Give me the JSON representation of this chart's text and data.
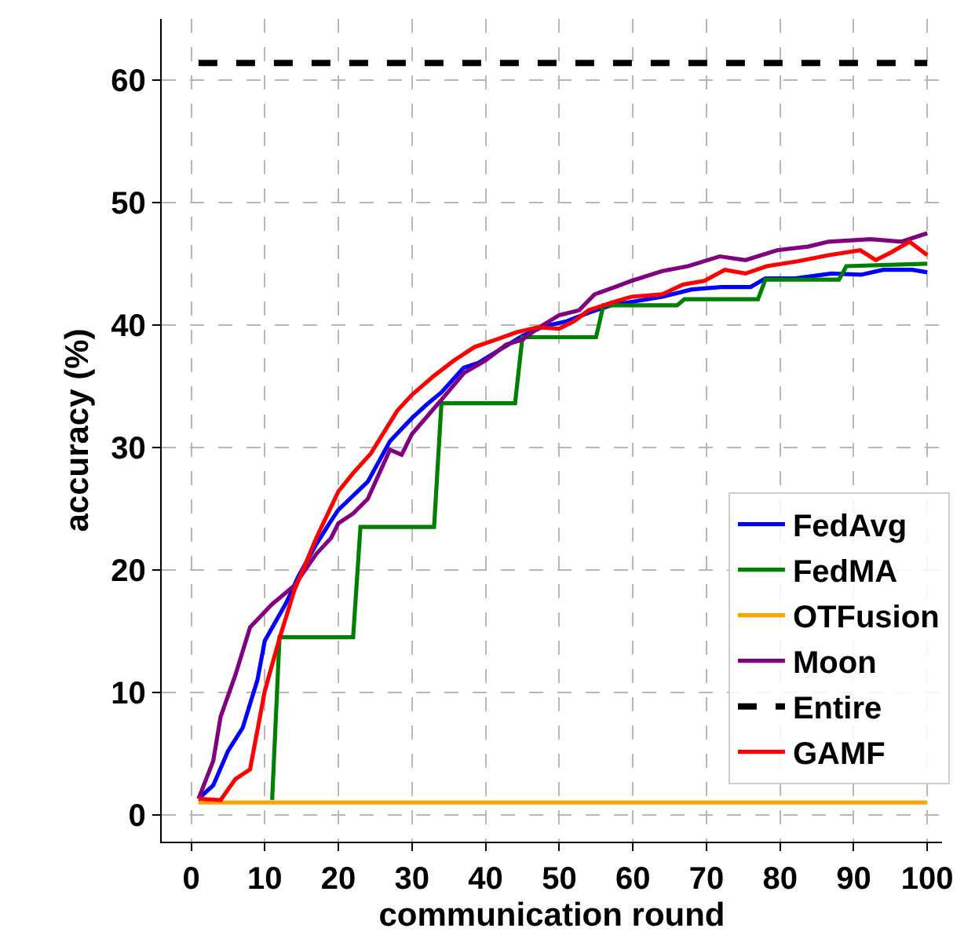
{
  "chart_data": {
    "type": "line",
    "xlabel": "communication round",
    "ylabel": "accuracy (%)",
    "xlim": [
      -4,
      102
    ],
    "ylim": [
      -2.2,
      65
    ],
    "xticks": [
      0,
      10,
      20,
      30,
      40,
      50,
      60,
      70,
      80,
      90,
      100
    ],
    "yticks": [
      0,
      10,
      20,
      30,
      40,
      50,
      60
    ],
    "grid": true,
    "legend": "bottom right",
    "series": [
      {
        "name": "FedAvg",
        "color": "#0000ff",
        "x": [
          1,
          3,
          5,
          7,
          9,
          10,
          13,
          14.5,
          17,
          19,
          20,
          24,
          27,
          30,
          32,
          34,
          37,
          39,
          42,
          45,
          48,
          51,
          54,
          57,
          60,
          64,
          68,
          72,
          76,
          78,
          82,
          87,
          91,
          94,
          98,
          100
        ],
        "values": [
          1.3,
          2.4,
          5.2,
          7.1,
          11.0,
          14.2,
          17.4,
          19.4,
          22.1,
          24.0,
          24.9,
          27.2,
          30.5,
          32.4,
          33.5,
          34.5,
          36.5,
          36.9,
          38.0,
          39.1,
          39.9,
          40.3,
          41.0,
          41.6,
          41.9,
          42.3,
          42.9,
          43.1,
          43.1,
          43.8,
          43.8,
          44.2,
          44.1,
          44.5,
          44.5,
          44.3
        ]
      },
      {
        "name": "FedMA",
        "color": "#008000",
        "x": [
          11,
          12,
          22,
          23,
          33,
          34,
          44,
          45,
          55,
          56,
          66,
          67,
          77,
          78,
          88,
          89,
          100
        ],
        "values": [
          1.2,
          14.5,
          14.5,
          23.5,
          23.5,
          33.6,
          33.6,
          39.0,
          39.0,
          41.6,
          41.6,
          42.1,
          42.1,
          43.7,
          43.7,
          44.8,
          45.0
        ]
      },
      {
        "name": "OTFusion",
        "color": "#ffa500",
        "x": [
          1,
          100
        ],
        "values": [
          1.0,
          1.0
        ]
      },
      {
        "name": "Moon",
        "color": "#800080",
        "x": [
          1,
          3,
          4,
          6,
          8,
          11,
          14,
          17,
          19,
          20,
          22,
          24,
          27,
          28.6,
          30,
          34.3,
          37.1,
          40,
          42.8,
          45,
          47,
          50,
          52.7,
          54.8,
          57.6,
          59.8,
          64,
          67.5,
          71.8,
          75.3,
          79.6,
          83.8,
          86.6,
          92.3,
          96.5,
          100
        ],
        "values": [
          1.3,
          4.4,
          8.0,
          11.4,
          15.3,
          17.2,
          18.7,
          21.3,
          22.6,
          23.8,
          24.6,
          25.8,
          29.8,
          29.4,
          31.1,
          34.1,
          36.1,
          37.1,
          38.4,
          38.8,
          39.7,
          40.8,
          41.2,
          42.5,
          43.1,
          43.6,
          44.4,
          44.8,
          45.6,
          45.3,
          46.1,
          46.4,
          46.8,
          47.0,
          46.8,
          47.5
        ]
      },
      {
        "name": "Entire",
        "color": "#000000",
        "line_style": "dashed",
        "x": [
          1,
          100
        ],
        "values": [
          61.4,
          61.4
        ]
      },
      {
        "name": "GAMF",
        "color": "#ff0000",
        "x": [
          1,
          4,
          6,
          8,
          10,
          12,
          14,
          17,
          20,
          22,
          24.4,
          28,
          30,
          32.9,
          35.7,
          38.5,
          41.4,
          44.2,
          47,
          50,
          52,
          54,
          57,
          59.8,
          64,
          66.8,
          69.7,
          72.5,
          75.3,
          78.2,
          82.4,
          86.6,
          90.9,
          93,
          95,
          97.6,
          100
        ],
        "values": [
          1.3,
          1.2,
          2.9,
          3.7,
          10.1,
          14.4,
          18.3,
          22.6,
          26.4,
          27.9,
          29.5,
          33.0,
          34.3,
          35.8,
          37.1,
          38.2,
          38.8,
          39.4,
          39.8,
          39.7,
          40.3,
          41.2,
          41.8,
          42.3,
          42.5,
          43.3,
          43.6,
          44.5,
          44.2,
          44.8,
          45.2,
          45.7,
          46.1,
          45.3,
          45.9,
          46.8,
          45.7
        ]
      }
    ]
  }
}
